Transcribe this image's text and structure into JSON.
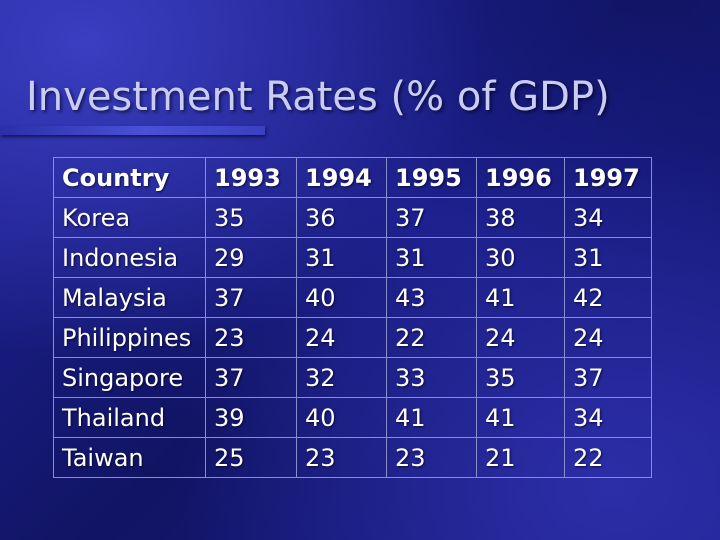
{
  "slide": {
    "title": "Investment Rates (% of GDP)"
  },
  "table": {
    "headers": [
      "Country",
      "1993",
      "1994",
      "1995",
      "1996",
      "1997"
    ],
    "rows": [
      [
        "Korea",
        "35",
        "36",
        "37",
        "38",
        "34"
      ],
      [
        "Indonesia",
        "29",
        "31",
        "31",
        "30",
        "31"
      ],
      [
        "Malaysia",
        "37",
        "40",
        "43",
        "41",
        "42"
      ],
      [
        "Philippines",
        "23",
        "24",
        "22",
        "24",
        "24"
      ],
      [
        "Singapore",
        "37",
        "32",
        "33",
        "35",
        "37"
      ],
      [
        "Thailand",
        "39",
        "40",
        "41",
        "41",
        "34"
      ],
      [
        "Taiwan",
        "25",
        "23",
        "23",
        "21",
        "22"
      ]
    ]
  },
  "colors": {
    "background": "#161a7a",
    "title_text": "#c9cdf4",
    "table_text": "#ffffff",
    "rule_accent": "#4a51d6"
  }
}
